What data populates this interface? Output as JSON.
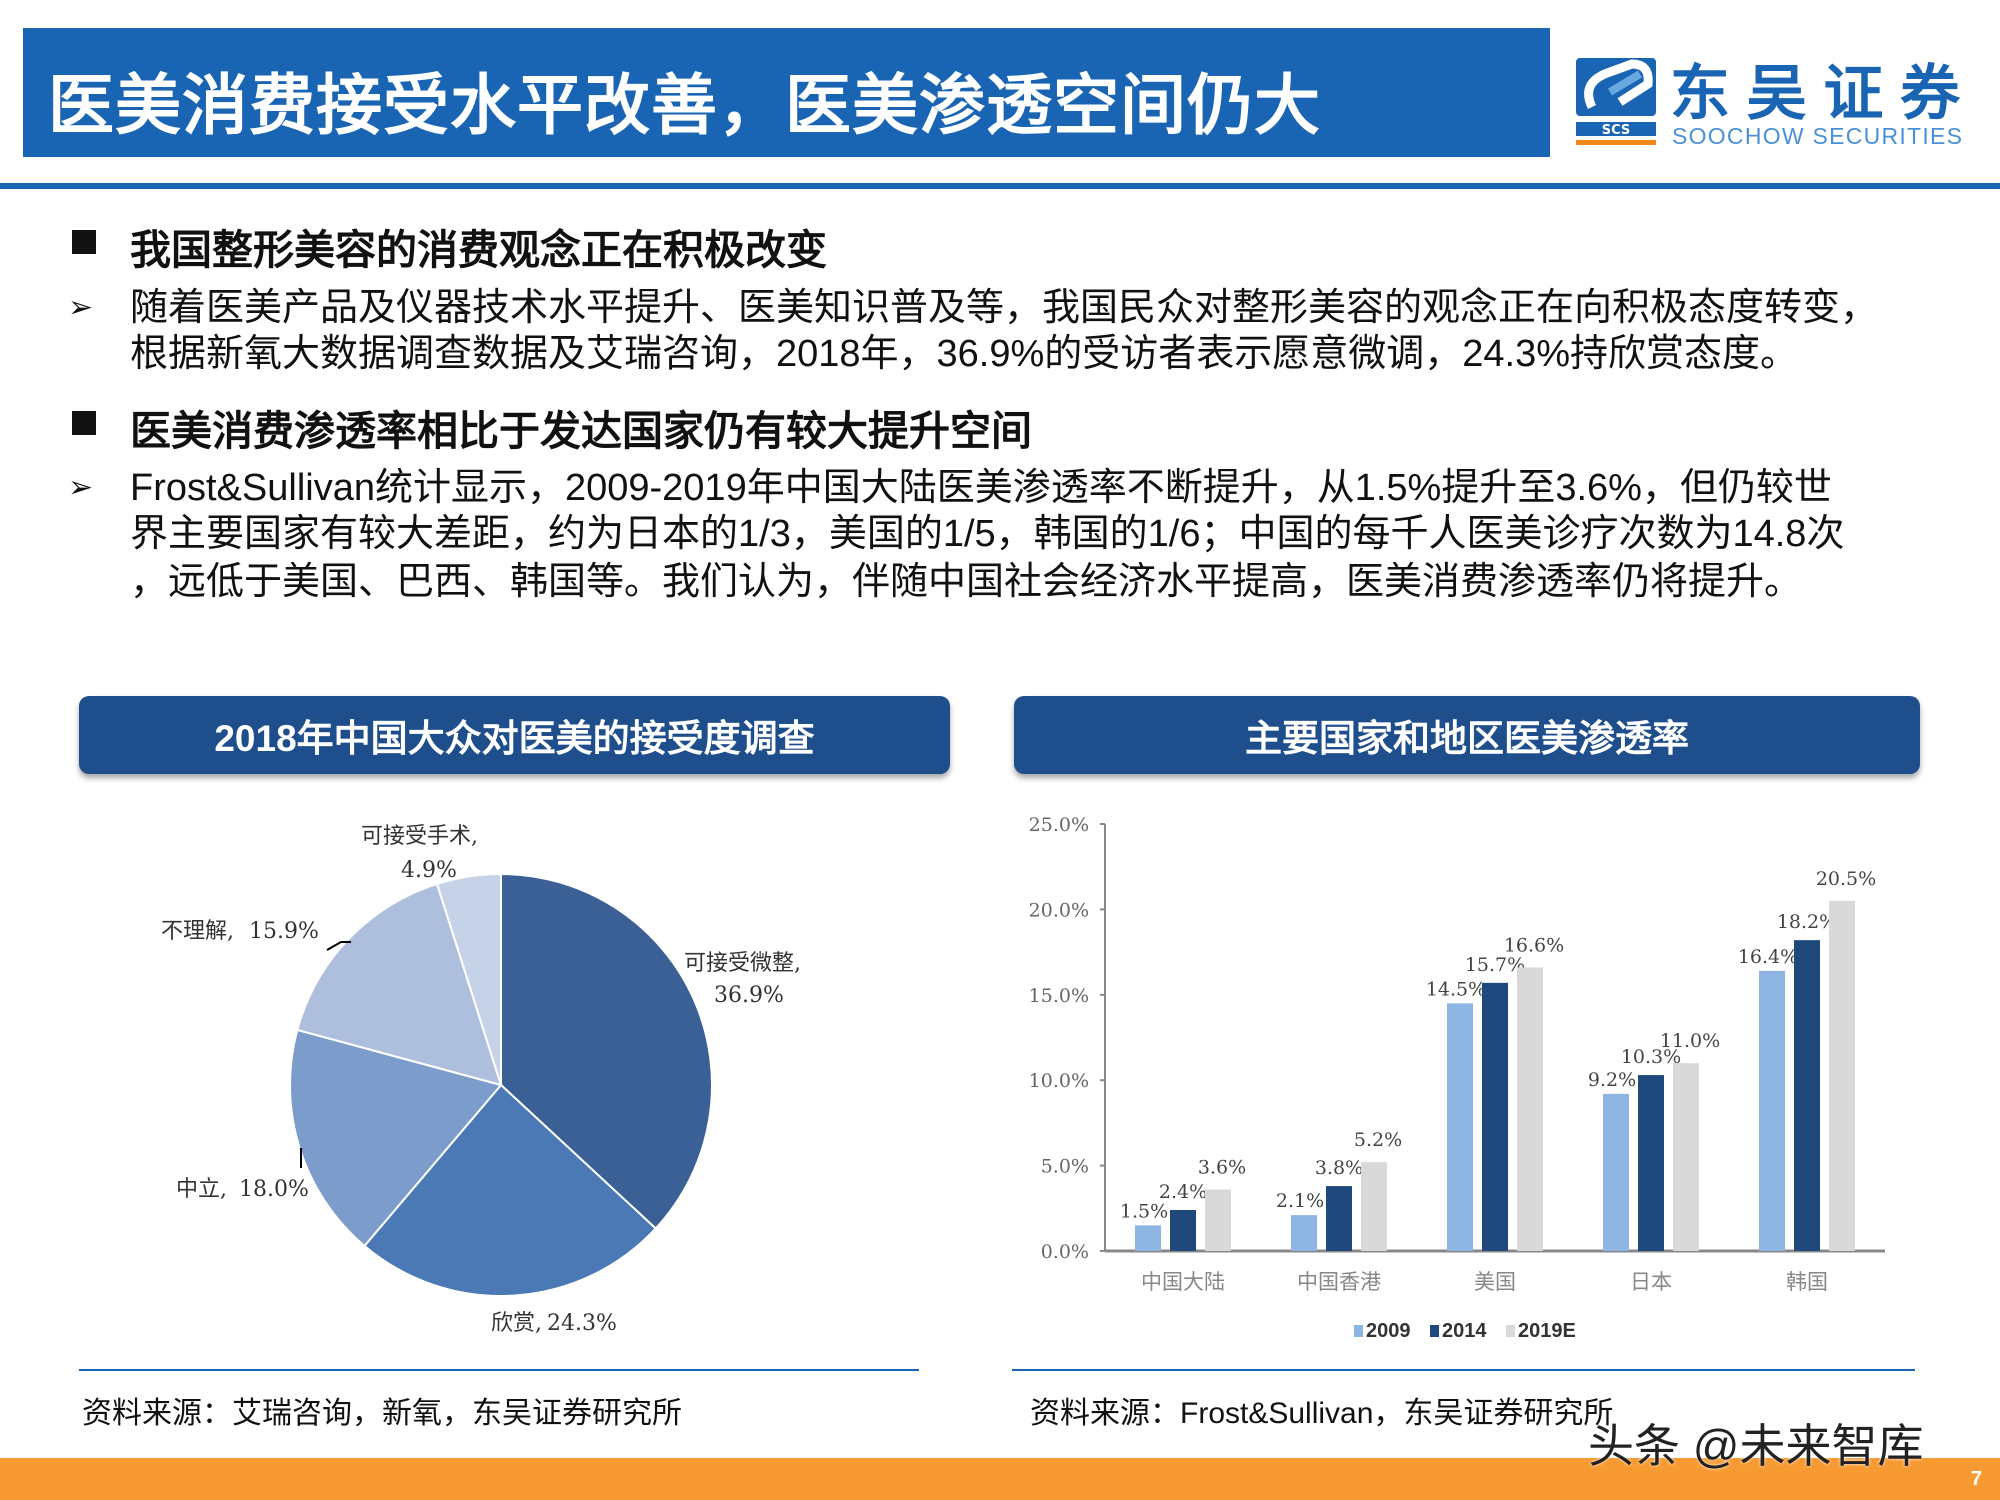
{
  "header": {
    "title": "医美消费接受水平改善，医美渗透空间仍大",
    "logo_cn": "东吴证券",
    "logo_en": "SOOCHOW SECURITIES",
    "logo_mark": "SCS"
  },
  "sections": [
    {
      "heading": "我国整形美容的消费观念正在积极改变",
      "lines": [
        "随着医美产品及仪器技术水平提升、医美知识普及等，我国民众对整形美容的观念正在向积极态度转变，",
        "根据新氧大数据调查数据及艾瑞咨询，2018年，36.9%的受访者表示愿意微调，24.3%持欣赏态度。"
      ]
    },
    {
      "heading": "医美消费渗透率相比于发达国家仍有较大提升空间",
      "lines": [
        "Frost&Sullivan统计显示，2009-2019年中国大陆医美渗透率不断提升，从1.5%提升至3.6%，但仍较世",
        "界主要国家有较大差距，约为日本的1/3，美国的1/5，韩国的1/6；中国的每千人医美诊疗次数为14.8次",
        "，远低于美国、巴西、韩国等。我们认为，伴随中国社会经济水平提高，医美消费渗透率仍将提升。"
      ]
    }
  ],
  "chart_data": [
    {
      "type": "pie",
      "title": "2018年中国大众对医美的接受度调查",
      "slices": [
        {
          "label": "可接受微整,",
          "value_label": "36.9%",
          "value": 36.9,
          "color": "#3b6096"
        },
        {
          "label": "欣赏,",
          "value_label": "24.3%",
          "value": 24.3,
          "color": "#4a79b5"
        },
        {
          "label": "中立,",
          "value_label": "18.0%",
          "value": 18.0,
          "color": "#7c9ccc"
        },
        {
          "label": "不理解,",
          "value_label": "15.9%",
          "value": 15.9,
          "color": "#aebfdd"
        },
        {
          "label": "可接受手术,",
          "value_label": "4.9%",
          "value": 4.9,
          "color": "#c6d2e7"
        }
      ],
      "source": "资料来源：艾瑞咨询，新氧，东吴证券研究所"
    },
    {
      "type": "bar",
      "title": "主要国家和地区医美渗透率",
      "categories": [
        "中国大陆",
        "中国香港",
        "美国",
        "日本",
        "韩国"
      ],
      "series": [
        {
          "name": "2009",
          "values": [
            1.5,
            2.1,
            14.5,
            9.2,
            16.4
          ],
          "color": "#8db4e2"
        },
        {
          "name": "2014",
          "values": [
            2.4,
            3.8,
            15.7,
            10.3,
            18.2
          ],
          "color": "#1f497d"
        },
        {
          "name": "2019E",
          "values": [
            3.6,
            5.2,
            16.6,
            11.0,
            20.5
          ],
          "color": "#d9d9d9"
        }
      ],
      "yticks": [
        "0.0%",
        "5.0%",
        "10.0%",
        "15.0%",
        "20.0%",
        "25.0%"
      ],
      "ylim": [
        0,
        25
      ],
      "legend": "bottom",
      "source": "资料来源：Frost&Sullivan，东吴证券研究所"
    }
  ],
  "footer": {
    "page": "7",
    "watermark": "头条 @未来智库"
  }
}
